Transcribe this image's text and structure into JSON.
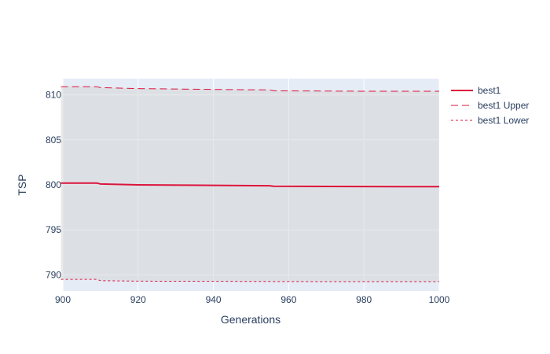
{
  "chart_data": {
    "type": "line",
    "title": "",
    "xlabel": "Generations",
    "ylabel": "TSP",
    "xlim": [
      900,
      1000
    ],
    "ylim": [
      788.2,
      811.8
    ],
    "x_ticks": [
      900,
      920,
      940,
      960,
      980,
      1000
    ],
    "y_ticks": [
      790,
      795,
      800,
      805,
      810
    ],
    "grid": true,
    "legend_position": "top-right",
    "band": {
      "between": [
        "best1 Upper",
        "best1 Lower"
      ],
      "color": "#d3d3d3"
    },
    "series": [
      {
        "name": "best1",
        "color": "#dc143c",
        "dash": "solid",
        "x": [
          899.5,
          909,
          910,
          920,
          940,
          955,
          956,
          980,
          1000
        ],
        "y": [
          800.2,
          800.2,
          800.1,
          800.0,
          799.95,
          799.9,
          799.85,
          799.82,
          799.8
        ]
      },
      {
        "name": "best1 Upper",
        "color": "#dc143c",
        "dash": "dash",
        "x": [
          899.5,
          909,
          910,
          920,
          940,
          955,
          956,
          980,
          1000
        ],
        "y": [
          810.9,
          810.9,
          810.8,
          810.7,
          810.6,
          810.55,
          810.45,
          810.4,
          810.4
        ]
      },
      {
        "name": "best1 Lower",
        "color": "#dc143c",
        "dash": "dot",
        "x": [
          899.5,
          909,
          910,
          920,
          940,
          955,
          956,
          980,
          1000
        ],
        "y": [
          789.5,
          789.5,
          789.35,
          789.3,
          789.28,
          789.27,
          789.26,
          789.25,
          789.25
        ]
      }
    ]
  }
}
